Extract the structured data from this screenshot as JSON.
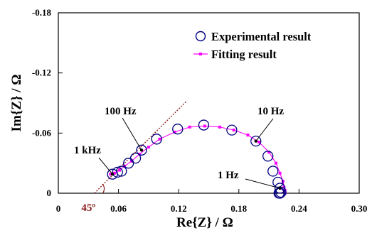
{
  "chart_data": {
    "type": "scatter",
    "title": "",
    "xlabel": "Re{Z} / Ω",
    "ylabel": "Im{Z} / Ω",
    "xlim": [
      0,
      0.3
    ],
    "ylim": [
      0,
      -0.18
    ],
    "xticks": [
      "0",
      "0.06",
      "0.12",
      "0.18",
      "0.24",
      "0.30"
    ],
    "yticks": [
      "0",
      "-0.06",
      "-0.12",
      "-0.18"
    ],
    "x_tick_values": [
      0,
      0.06,
      0.12,
      0.18,
      0.24,
      0.3
    ],
    "y_tick_values": [
      0,
      -0.06,
      -0.12,
      -0.18
    ],
    "grid": false,
    "legend_position": "top-right",
    "series": [
      {
        "name": "Experimental result",
        "marker": "open-circle",
        "color": "#000080",
        "points": [
          [
            0.054,
            -0.019
          ],
          [
            0.059,
            -0.021
          ],
          [
            0.063,
            -0.022
          ],
          [
            0.07,
            -0.03
          ],
          [
            0.077,
            -0.035
          ],
          [
            0.083,
            -0.043
          ],
          [
            0.098,
            -0.054
          ],
          [
            0.119,
            -0.064
          ],
          [
            0.145,
            -0.068
          ],
          [
            0.173,
            -0.063
          ],
          [
            0.197,
            -0.052
          ],
          [
            0.209,
            -0.037
          ],
          [
            0.214,
            -0.022
          ],
          [
            0.219,
            -0.011
          ],
          [
            0.221,
            -0.005
          ],
          [
            0.222,
            -0.001
          ],
          [
            0.221,
            0.0
          ],
          [
            0.22,
            0.0
          ]
        ]
      },
      {
        "name": "Fitting result",
        "marker": "square-line",
        "color": "#ff00ff",
        "points": [
          [
            0.052,
            -0.019
          ],
          [
            0.056,
            -0.02
          ],
          [
            0.061,
            -0.023
          ],
          [
            0.066,
            -0.027
          ],
          [
            0.073,
            -0.032
          ],
          [
            0.081,
            -0.039
          ],
          [
            0.09,
            -0.046
          ],
          [
            0.101,
            -0.054
          ],
          [
            0.116,
            -0.061
          ],
          [
            0.131,
            -0.066
          ],
          [
            0.146,
            -0.067
          ],
          [
            0.161,
            -0.066
          ],
          [
            0.175,
            -0.063
          ],
          [
            0.189,
            -0.058
          ],
          [
            0.2,
            -0.051
          ],
          [
            0.21,
            -0.041
          ],
          [
            0.217,
            -0.03
          ],
          [
            0.221,
            -0.02
          ],
          [
            0.224,
            -0.012
          ],
          [
            0.225,
            -0.006
          ],
          [
            0.226,
            -0.003
          ],
          [
            0.226,
            0.0
          ]
        ]
      }
    ],
    "reference_line": {
      "label": "45º",
      "color": "#8b1a1a",
      "from": [
        0.036,
        0.0
      ],
      "to": [
        0.128,
        -0.092
      ]
    },
    "annotations": [
      {
        "text": "1 kHz",
        "point": [
          0.054,
          -0.019
        ]
      },
      {
        "text": "100 Hz",
        "point": [
          0.083,
          -0.043
        ]
      },
      {
        "text": "10 Hz",
        "point": [
          0.197,
          -0.052
        ]
      },
      {
        "text": "1 Hz",
        "point": [
          0.221,
          -0.005
        ]
      }
    ]
  }
}
